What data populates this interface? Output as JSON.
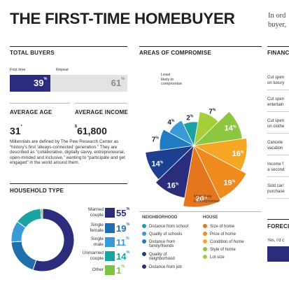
{
  "title": "THE FIRST-TIME HOMEBUYER",
  "intro": [
    "In ord",
    "buyer,"
  ],
  "total_buyers": {
    "heading": "TOTAL BUYERS",
    "first_label": "First time",
    "repeat_label": "Repeat",
    "first_value": "39",
    "repeat_value": "61",
    "pct": "%",
    "first_fraction": 0.39
  },
  "average_age": {
    "heading": "AVERAGE AGE",
    "value": "31",
    "sup": "*"
  },
  "average_income": {
    "heading": "AVERAGE INCOME",
    "sup": "$",
    "value": "61,800"
  },
  "millennials_text": "Millennials are defined by The Pew Research Center as “history’s first ‘always-connected’ generation.” They are described as “collaborative, digitally savvy, entrepreneurial, open-minded and inclusive,” wanting to “participate and get engaged” in the world around them.",
  "household": {
    "heading": "HOUSEHOLD TYPE",
    "items": [
      {
        "label": [
          "Married",
          "couple"
        ],
        "value": "55",
        "color": "#2b2c7c"
      },
      {
        "label": [
          "Single",
          "female"
        ],
        "value": "19",
        "color": "#1f6fad"
      },
      {
        "label": [
          "Single",
          "male"
        ],
        "value": "11",
        "color": "#3a9ad6"
      },
      {
        "label": [
          "Unmarried",
          "couple"
        ],
        "value": "14",
        "color": "#1aa3a3"
      },
      {
        "label": [
          "Other"
        ],
        "value": "1",
        "color": "#7dc242"
      }
    ]
  },
  "compromise": {
    "heading": "AREAS OF COMPROMISE",
    "least_label": [
      "Least",
      "likely to",
      "compromise"
    ],
    "most_label": [
      "Most likely",
      "to compromise"
    ],
    "slices": [
      {
        "value": "7",
        "color": "#a6ce39"
      },
      {
        "value": "14",
        "color": "#8dc63f"
      },
      {
        "value": "16",
        "color": "#f5a623"
      },
      {
        "value": "19",
        "color": "#ef8a1f"
      },
      {
        "value": "20",
        "color": "#e6761e"
      },
      {
        "value": "16",
        "color": "#2b2c7c"
      },
      {
        "value": "14",
        "color": "#1d3f8f"
      },
      {
        "value": "7",
        "color": "#1f7bc2"
      },
      {
        "value": "4",
        "color": "#3a9ad6"
      },
      {
        "value": "2",
        "color": "#1aa3a3"
      }
    ],
    "legend": {
      "neighborhood_heading": "NEIGHBORHOOD",
      "house_heading": "HOUSE",
      "neighborhood": [
        {
          "label": "Distance from school",
          "color": "#1aa3a3"
        },
        {
          "label": "Quality of schools",
          "color": "#3a9ad6"
        },
        {
          "label": "Distance from family/friends",
          "color": "#1f7bc2"
        },
        {
          "label": "Quality of neighborhood",
          "color": "#1d3f8f"
        },
        {
          "label": "Distance from job",
          "color": "#2b2c7c"
        }
      ],
      "house": [
        {
          "label": "Size of home",
          "color": "#e6761e"
        },
        {
          "label": "Price of home",
          "color": "#ef8a1f"
        },
        {
          "label": "Condition of home",
          "color": "#f5a623"
        },
        {
          "label": "Style of home",
          "color": "#8dc63f"
        },
        {
          "label": "Lot size",
          "color": "#a6ce39"
        }
      ]
    }
  },
  "finance": {
    "heading": "FINANC",
    "items": [
      [
        "Cut spen",
        "on luxury"
      ],
      [
        "Cut spen",
        "entertain"
      ],
      [
        "Cut spen",
        "on clothe"
      ],
      [
        "Cancele",
        "vacation"
      ],
      [
        "Income f",
        "a second"
      ],
      [
        "Sold car/",
        "purchase"
      ]
    ]
  },
  "foreclosure": {
    "heading": "FORECL",
    "text": "Yes, I’d c"
  }
}
